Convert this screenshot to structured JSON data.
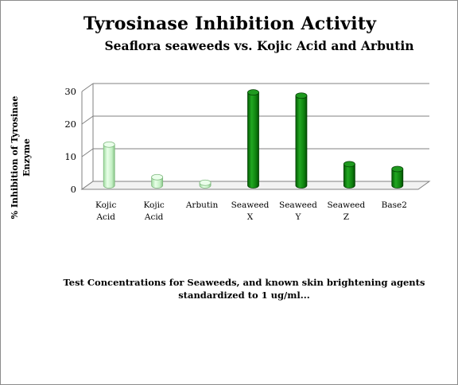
{
  "chart_data": {
    "type": "bar",
    "title": "Tyrosinase Inhibition Activity",
    "subtitle": "Seaflora seaweeds vs. Kojic Acid and Arbutin",
    "xlabel_lines": [
      "Test Concentrations for Seaweeds,  and known skin brightening agents",
      "standardized to 1 ug/ml..."
    ],
    "ylabel_lines": [
      "% Inhibition of Tyrosinae",
      "Enzyme"
    ],
    "categories": [
      [
        "Kojic",
        "Acid"
      ],
      [
        "Kojic",
        "Acid"
      ],
      [
        "Arbutin"
      ],
      [
        "Seaweed",
        "X"
      ],
      [
        "Seaweed",
        "Y"
      ],
      [
        "Seaweed",
        "Z"
      ],
      [
        "Base2"
      ]
    ],
    "values": [
      12.5,
      2.5,
      0.8,
      28.5,
      27.5,
      6.5,
      5
    ],
    "bar_colors": [
      "light",
      "light",
      "light",
      "dark",
      "dark",
      "dark",
      "dark"
    ],
    "ylim": [
      0,
      30
    ],
    "yticks": [
      0,
      10,
      20,
      30
    ],
    "grid": true,
    "style": "3d-cylinder",
    "colors": {
      "light": "#ccf5cc",
      "dark": "#138a13",
      "grid": "#808080"
    }
  }
}
